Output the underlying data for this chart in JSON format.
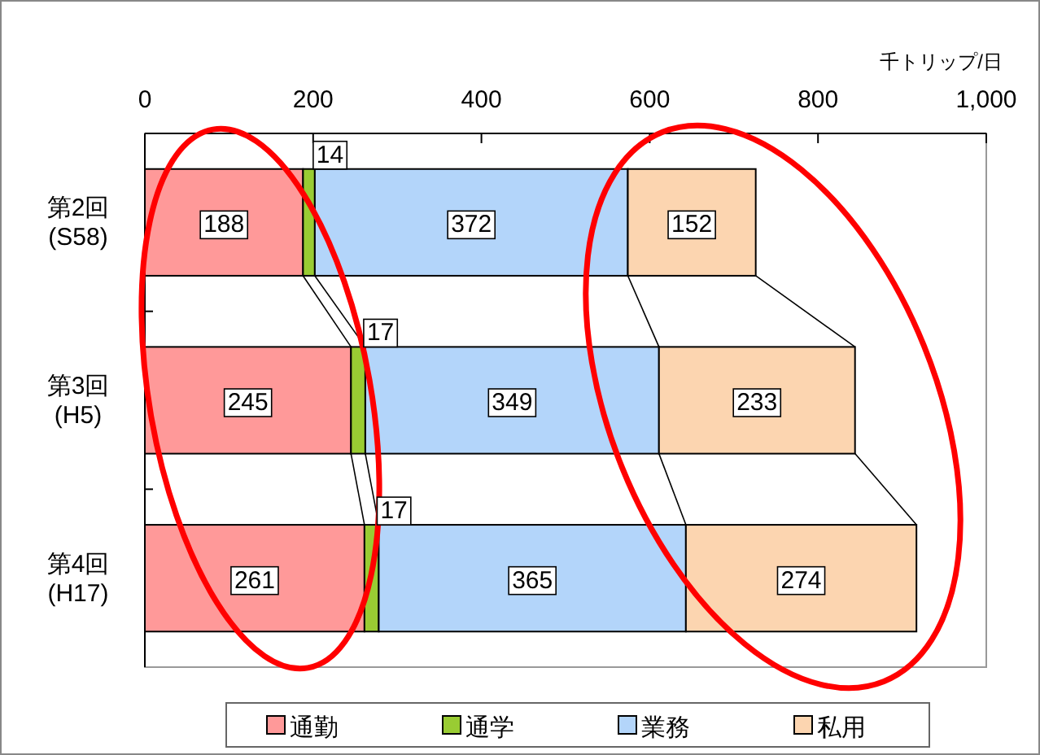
{
  "chart_data": {
    "type": "bar",
    "orientation": "horizontal",
    "stacked": true,
    "xlabel": "千トリップ/日",
    "categories": [
      "第2回 (S58)",
      "第3回 (H5)",
      "第4回 (H17)"
    ],
    "series": [
      {
        "name": "通勤",
        "color": "#ff9999",
        "values": [
          188,
          245,
          261
        ]
      },
      {
        "name": "通学",
        "color": "#99cc33",
        "values": [
          14,
          17,
          17
        ]
      },
      {
        "name": "業務",
        "color": "#b3d5fa",
        "values": [
          372,
          349,
          365
        ]
      },
      {
        "name": "私用",
        "color": "#fcd5b0",
        "values": [
          152,
          233,
          274
        ]
      }
    ],
    "xlim": [
      0,
      1000
    ],
    "xticks": [
      0,
      200,
      400,
      600,
      800,
      {
        "value": 1000,
        "label": "1,000"
      }
    ],
    "data_labels": true,
    "legend": "bottom",
    "grid": false
  }
}
